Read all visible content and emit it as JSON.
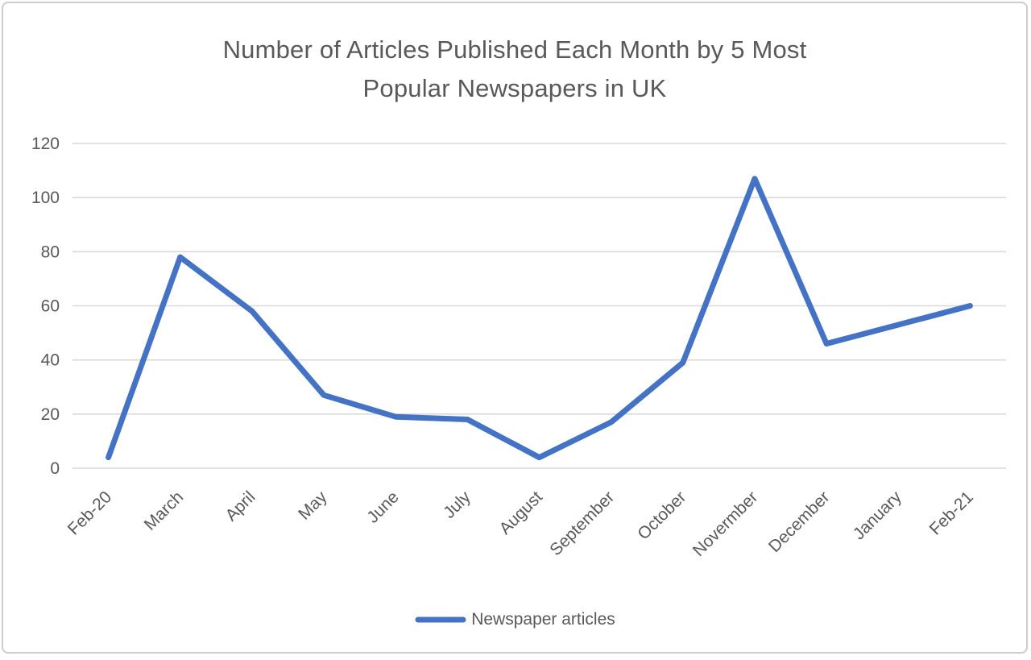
{
  "chart": {
    "title_lines": [
      "Number of Articles Published Each Month by 5 Most",
      "Popular Newspapers in UK"
    ]
  },
  "chart_data": {
    "type": "line",
    "title": "Number of Articles Published Each Month by 5 Most Popular Newspapers in UK",
    "categories": [
      "Feb-20",
      "March",
      "April",
      "May",
      "June",
      "July",
      "August",
      "September",
      "October",
      "Novermber",
      "December",
      "January",
      "Feb-21"
    ],
    "series": [
      {
        "name": "Newspaper articles",
        "values": [
          4,
          78,
          58,
          27,
          19,
          18,
          4,
          17,
          39,
          107,
          46,
          53,
          60
        ]
      }
    ],
    "xlabel": "",
    "ylabel": "",
    "ylim": [
      0,
      120
    ],
    "ytick_step": 20,
    "grid": true,
    "legend_position": "bottom",
    "x_label_rotation_deg": -45,
    "colors": {
      "line": "#4472C4",
      "gridline": "#D9D9D9",
      "text": "#595959",
      "frame_border": "#CDCDCD"
    }
  }
}
